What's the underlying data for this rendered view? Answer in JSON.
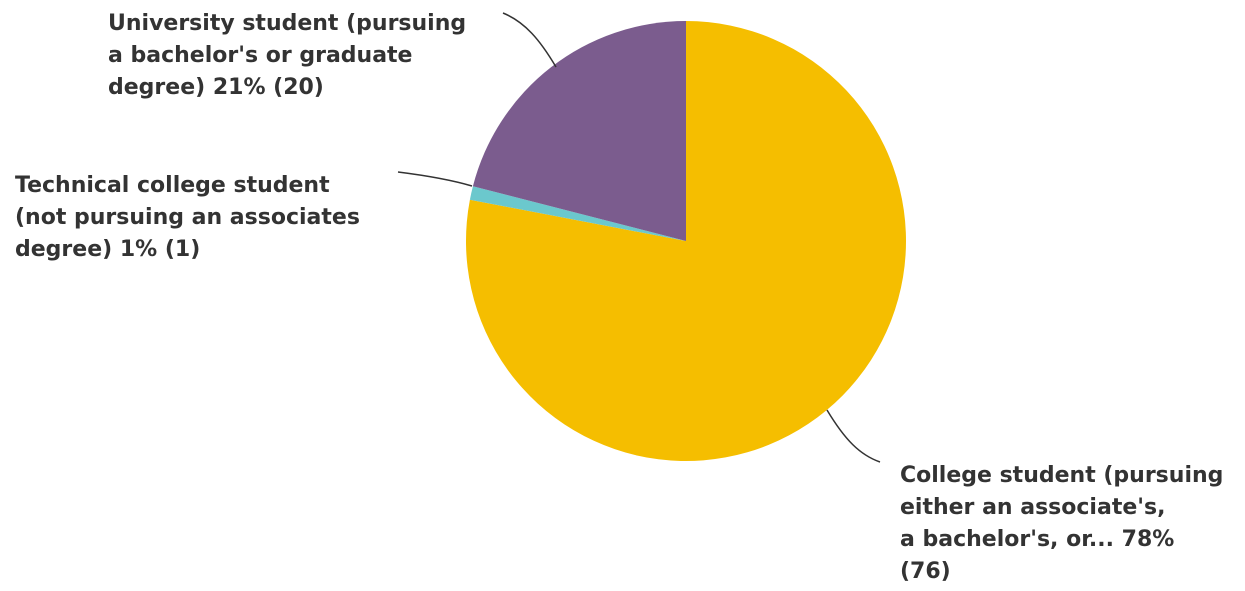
{
  "chart_data": {
    "type": "pie",
    "title": "",
    "start_angle_deg": 0,
    "direction": "clockwise",
    "slices": [
      {
        "label_lines": [
          "College student (pursuing",
          "either an associate's,",
          "a bachelor's, or... 78%",
          "(76)"
        ],
        "category": "College student (pursuing either an associate's, a bachelor's, or...",
        "percent": 78,
        "count": 76,
        "color": "#F5BE00"
      },
      {
        "label_lines": [
          "Technical college student",
          "(not pursuing an associates",
          "degree) 1% (1)"
        ],
        "category": "Technical college student (not pursuing an associates degree)",
        "percent": 1,
        "count": 1,
        "color": "#6BC8CD"
      },
      {
        "label_lines": [
          "University student (pursuing",
          "a bachelor's or graduate",
          "degree) 21% (20)"
        ],
        "category": "University student (pursuing a bachelor's or graduate degree)",
        "percent": 21,
        "count": 20,
        "color": "#7B5C8E"
      }
    ]
  }
}
